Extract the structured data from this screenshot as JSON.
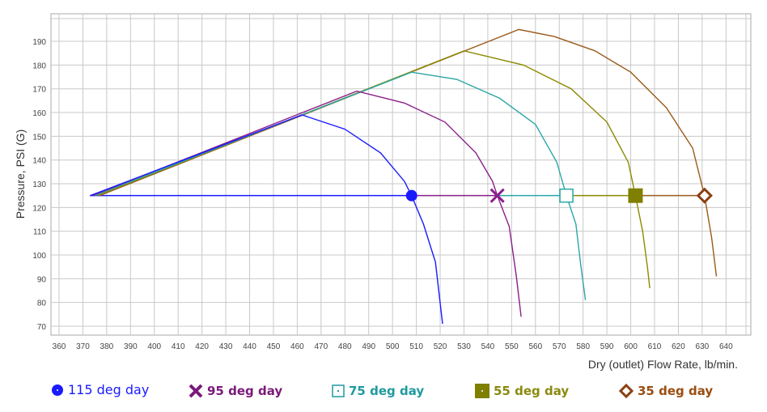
{
  "chart_data": {
    "type": "line",
    "title": "",
    "xlabel": "Dry (outlet) Flow Rate, lb/min.",
    "ylabel": "Pressure, PSI (G)",
    "xlim": [
      360,
      640
    ],
    "ylim": [
      65,
      198
    ],
    "x_ticks": [
      360,
      370,
      380,
      390,
      400,
      410,
      420,
      430,
      440,
      450,
      460,
      470,
      480,
      490,
      500,
      510,
      520,
      530,
      540,
      550,
      560,
      570,
      580,
      590,
      600,
      610,
      620,
      630,
      640
    ],
    "y_ticks": [
      70,
      80,
      90,
      100,
      110,
      120,
      130,
      140,
      150,
      160,
      170,
      180,
      190
    ],
    "grid": true,
    "legend_position": "bottom",
    "reference_pressure": 125,
    "series": [
      {
        "name": "115 deg day",
        "color": "#1a1aff",
        "marker": "circle",
        "operating_point": [
          508,
          125
        ],
        "points": [
          [
            373,
            125
          ],
          [
            462,
            159
          ],
          [
            480,
            153
          ],
          [
            495,
            143
          ],
          [
            505,
            131
          ],
          [
            508,
            125
          ],
          [
            513,
            113
          ],
          [
            518,
            97
          ],
          [
            521,
            71
          ]
        ]
      },
      {
        "name": "95 deg day",
        "color": "#8b1f8b",
        "marker": "x",
        "operating_point": [
          544,
          125
        ],
        "points": [
          [
            374,
            125
          ],
          [
            485,
            169
          ],
          [
            505,
            164
          ],
          [
            522,
            156
          ],
          [
            535,
            143
          ],
          [
            542,
            131
          ],
          [
            544,
            125
          ],
          [
            549,
            112
          ],
          [
            552,
            91
          ],
          [
            554,
            74
          ]
        ]
      },
      {
        "name": "75 deg day",
        "color": "#2aa6a6",
        "marker": "square-open",
        "operating_point": [
          573,
          125
        ],
        "points": [
          [
            375,
            125
          ],
          [
            508,
            177
          ],
          [
            527,
            174
          ],
          [
            545,
            166
          ],
          [
            560,
            155
          ],
          [
            569,
            139
          ],
          [
            573,
            125
          ],
          [
            577,
            113
          ],
          [
            579,
            96
          ],
          [
            581,
            81
          ]
        ]
      },
      {
        "name": "55 deg day",
        "color": "#8a8a00",
        "marker": "square-filled",
        "operating_point": [
          602,
          125
        ],
        "points": [
          [
            376,
            125
          ],
          [
            530,
            186
          ],
          [
            555,
            180
          ],
          [
            575,
            170
          ],
          [
            590,
            156
          ],
          [
            599,
            139
          ],
          [
            602,
            125
          ],
          [
            605,
            110
          ],
          [
            607,
            95
          ],
          [
            608,
            86
          ]
        ]
      },
      {
        "name": "35 deg day",
        "color": "#9a5a1a",
        "marker": "diamond-open",
        "operating_point": [
          631,
          125
        ],
        "points": [
          [
            377,
            125
          ],
          [
            553,
            195
          ],
          [
            568,
            192
          ],
          [
            585,
            186
          ],
          [
            600,
            177
          ],
          [
            615,
            162
          ],
          [
            626,
            145
          ],
          [
            631,
            125
          ],
          [
            634,
            107
          ],
          [
            636,
            91
          ]
        ]
      }
    ]
  },
  "legend": {
    "items": [
      {
        "label": "115 deg day",
        "color": "#1a1aff"
      },
      {
        "label": "95 deg day",
        "color": "#7a1a7a"
      },
      {
        "label": "75 deg day",
        "color": "#1f9aa0"
      },
      {
        "label": "55 deg day",
        "color": "#8a8a10"
      },
      {
        "label": "35 deg day",
        "color": "#9a4e12"
      }
    ]
  }
}
